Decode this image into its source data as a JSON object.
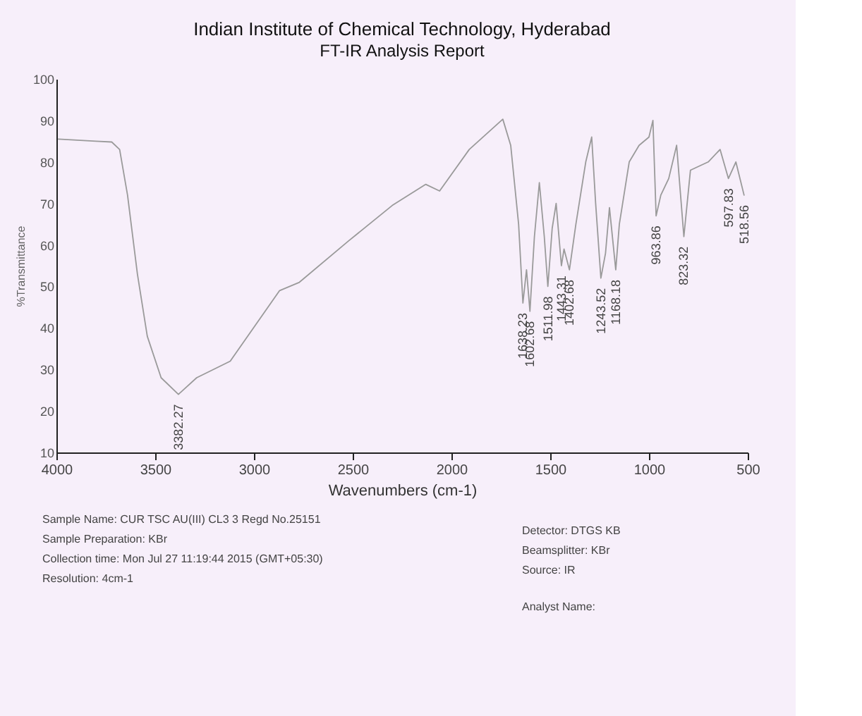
{
  "chart_data": {
    "type": "line",
    "title": "Indian Institute of Chemical Technology, Hyderabad",
    "subtitle": "FT-IR Analysis Report",
    "xlabel": "Wavenumbers (cm-1)",
    "ylabel": "%Transmittance",
    "x": [
      3990,
      3800,
      3720,
      3680,
      3640,
      3590,
      3540,
      3470,
      3382.27,
      3290,
      3120,
      2870,
      2770,
      2520,
      2300,
      2130,
      2060,
      1910,
      1740,
      1700,
      1660,
      1638.23,
      1620,
      1602.68,
      1580,
      1555,
      1530,
      1511.98,
      1490,
      1470,
      1443.31,
      1430,
      1402.68,
      1370,
      1320,
      1290,
      1270,
      1243.52,
      1220,
      1200,
      1168.18,
      1150,
      1100,
      1050,
      1000,
      980,
      963.86,
      940,
      900,
      860,
      823.32,
      790,
      700,
      640,
      597.83,
      560,
      518.56
    ],
    "series": [
      {
        "color": "#9a9a9a",
        "values": [
          85.5,
          85,
          84.8,
          83,
          72,
          53,
          38,
          28,
          24,
          28,
          32,
          49,
          51,
          61,
          69.5,
          74.6,
          73,
          83,
          90.3,
          84,
          65,
          46,
          54,
          44,
          62,
          75,
          62,
          50,
          64,
          70,
          55,
          59,
          54,
          65,
          80,
          86,
          70,
          52,
          58,
          69,
          54,
          65,
          80,
          84,
          86,
          90,
          67,
          72,
          76,
          84,
          62,
          78,
          80,
          83,
          76,
          80,
          72
        ]
      }
    ],
    "xlim": [
      4000,
      500
    ],
    "xticks": [
      4000,
      3500,
      3000,
      2500,
      2000,
      1500,
      1000,
      500
    ],
    "ylim": [
      10,
      100
    ],
    "yticks": [
      10,
      20,
      30,
      40,
      50,
      60,
      70,
      80,
      90,
      100
    ],
    "grid": false,
    "marker": "none",
    "line_style": "solid",
    "annotations": [
      {
        "text": "3382.27",
        "x": 3382.27,
        "y": 24
      },
      {
        "text": "1638.23",
        "x": 1638.23,
        "y": 46
      },
      {
        "text": "1602.68",
        "x": 1602.68,
        "y": 44
      },
      {
        "text": "1511.98",
        "x": 1511.98,
        "y": 50
      },
      {
        "text": "1443.31",
        "x": 1443.31,
        "y": 55
      },
      {
        "text": "1402.68",
        "x": 1402.68,
        "y": 54
      },
      {
        "text": "1243.52",
        "x": 1243.52,
        "y": 52
      },
      {
        "text": "1168.18",
        "x": 1168.18,
        "y": 54
      },
      {
        "text": "963.86",
        "x": 963.86,
        "y": 67
      },
      {
        "text": "823.32",
        "x": 823.32,
        "y": 62
      },
      {
        "text": "597.83",
        "x": 597.83,
        "y": 76
      },
      {
        "text": "518.56",
        "x": 518.56,
        "y": 72
      },
      "Sample Name: CUR TSC AU(III) CL3 3   Regd No.25151",
      "Sample Preparation: KBr",
      "Collection time: Mon Jul 27 11:19:44 2015 (GMT+05:30)",
      "Resolution: 4cm-1",
      "Detector: DTGS KB",
      "Beamsplitter: KBr",
      "Source: IR",
      "Analyst Name:"
    ]
  }
}
